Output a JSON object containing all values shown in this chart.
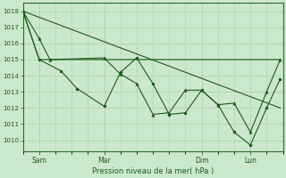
{
  "bg_color": "#cce8cc",
  "grid_color": "#aaccaa",
  "line_color": "#1a5c1a",
  "xlabel_text": "Pression niveau de la mer( hPa )",
  "ylim": [
    1009.3,
    1018.5
  ],
  "yticks": [
    1010,
    1011,
    1012,
    1013,
    1014,
    1015,
    1016,
    1017,
    1018
  ],
  "xlim": [
    0,
    96
  ],
  "xtick_positions": [
    6,
    30,
    66,
    84
  ],
  "xtick_labels": [
    "Sam",
    "Mar",
    "Dim",
    "Lun"
  ],
  "series1_x": [
    0,
    6,
    14,
    20,
    30,
    36,
    42,
    48,
    54,
    60,
    66,
    72,
    78,
    84,
    90,
    95
  ],
  "series1_y": [
    1018.0,
    1015.0,
    1014.3,
    1013.2,
    1012.1,
    1014.2,
    1015.1,
    1013.5,
    1011.6,
    1011.7,
    1013.1,
    1012.2,
    1010.5,
    1009.7,
    1012.0,
    1013.8
  ],
  "series2_x": [
    0,
    6,
    10,
    30,
    36,
    42,
    48,
    54,
    60,
    66,
    72,
    78,
    84,
    90,
    95
  ],
  "series2_y": [
    1018.0,
    1016.3,
    1015.0,
    1015.1,
    1014.1,
    1013.5,
    1011.6,
    1011.7,
    1013.1,
    1013.1,
    1012.2,
    1012.3,
    1010.5,
    1013.0,
    1015.0
  ],
  "series3_x": [
    0,
    6,
    30,
    66,
    84,
    95
  ],
  "series3_y": [
    1018.0,
    1015.0,
    1015.0,
    1015.0,
    1015.0,
    1015.0
  ],
  "series4_x": [
    0,
    95
  ],
  "series4_y": [
    1018.0,
    1012.0
  ]
}
